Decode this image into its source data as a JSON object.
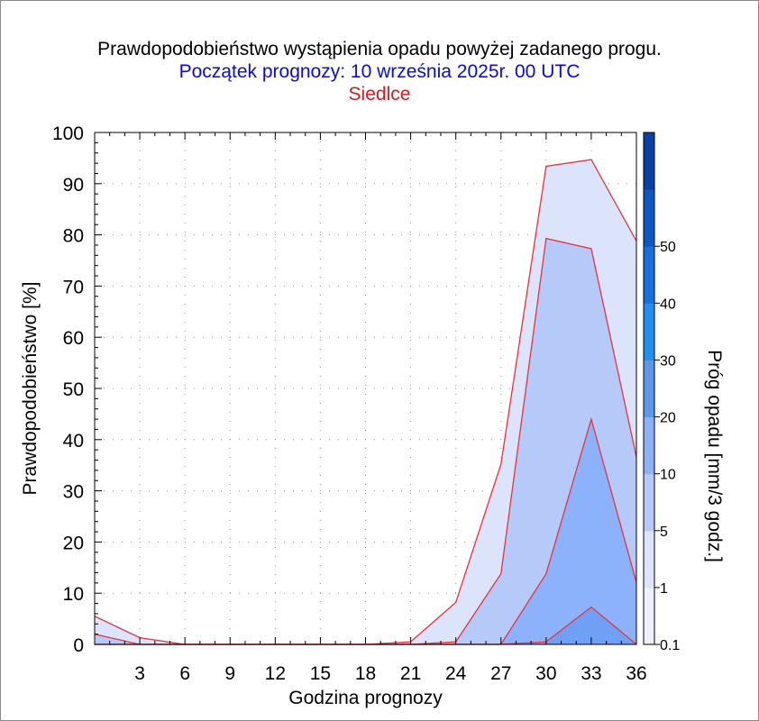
{
  "chart_data": {
    "type": "area",
    "title": "Prawdopodobieństwo wystąpienia opadu powyżej zadanego progu.",
    "subtitle": "Początek prognozy: 10 września 2025r. 00 UTC",
    "location": "Siedlce",
    "xlabel": "Godzina prognozy",
    "ylabel": "Prawdopodobieństwo [%]",
    "x": [
      0,
      3,
      6,
      9,
      12,
      15,
      18,
      21,
      24,
      27,
      30,
      33,
      36
    ],
    "x_tick_labels": [
      "3",
      "6",
      "9",
      "12",
      "15",
      "18",
      "21",
      "24",
      "27",
      "30",
      "33",
      "36"
    ],
    "y_tick_labels": [
      "0",
      "10",
      "20",
      "30",
      "40",
      "50",
      "60",
      "70",
      "80",
      "90",
      "100"
    ],
    "xlim": [
      0,
      36
    ],
    "ylim": [
      0,
      100
    ],
    "grid": true,
    "series": [
      {
        "threshold": 0.1,
        "color": "#dce4fc",
        "values": [
          5.5,
          1.3,
          0,
          0,
          0,
          0,
          0,
          0.5,
          8.2,
          35.2,
          93.4,
          94.7,
          78.8
        ]
      },
      {
        "threshold": 1,
        "color": "#b6cafa",
        "values": [
          2.0,
          0,
          0,
          0,
          0,
          0,
          0,
          0,
          0.5,
          13.8,
          79.3,
          77.3,
          36.6
        ]
      },
      {
        "threshold": 5,
        "color": "#8cb2fc",
        "values": [
          0,
          0,
          0,
          0,
          0,
          0,
          0,
          0,
          0,
          0,
          13.8,
          44.0,
          12.1
        ]
      },
      {
        "threshold": 10,
        "color": "#70a0f6",
        "values": [
          0,
          0,
          0,
          0,
          0,
          0,
          0,
          0,
          0,
          0,
          0.5,
          7.3,
          0
        ]
      }
    ],
    "colorbar": {
      "label": "Próg opadu [mm/3 godz.]",
      "tick_labels": [
        "0.1",
        "1",
        "5",
        "10",
        "20",
        "30",
        "40",
        "50"
      ],
      "colors": [
        "#eef2fe",
        "#dce4fc",
        "#b6cafa",
        "#8cb2fc",
        "#5a98ee",
        "#1e90f4",
        "#1470e0",
        "#0a58c8",
        "#0840a8"
      ]
    }
  }
}
